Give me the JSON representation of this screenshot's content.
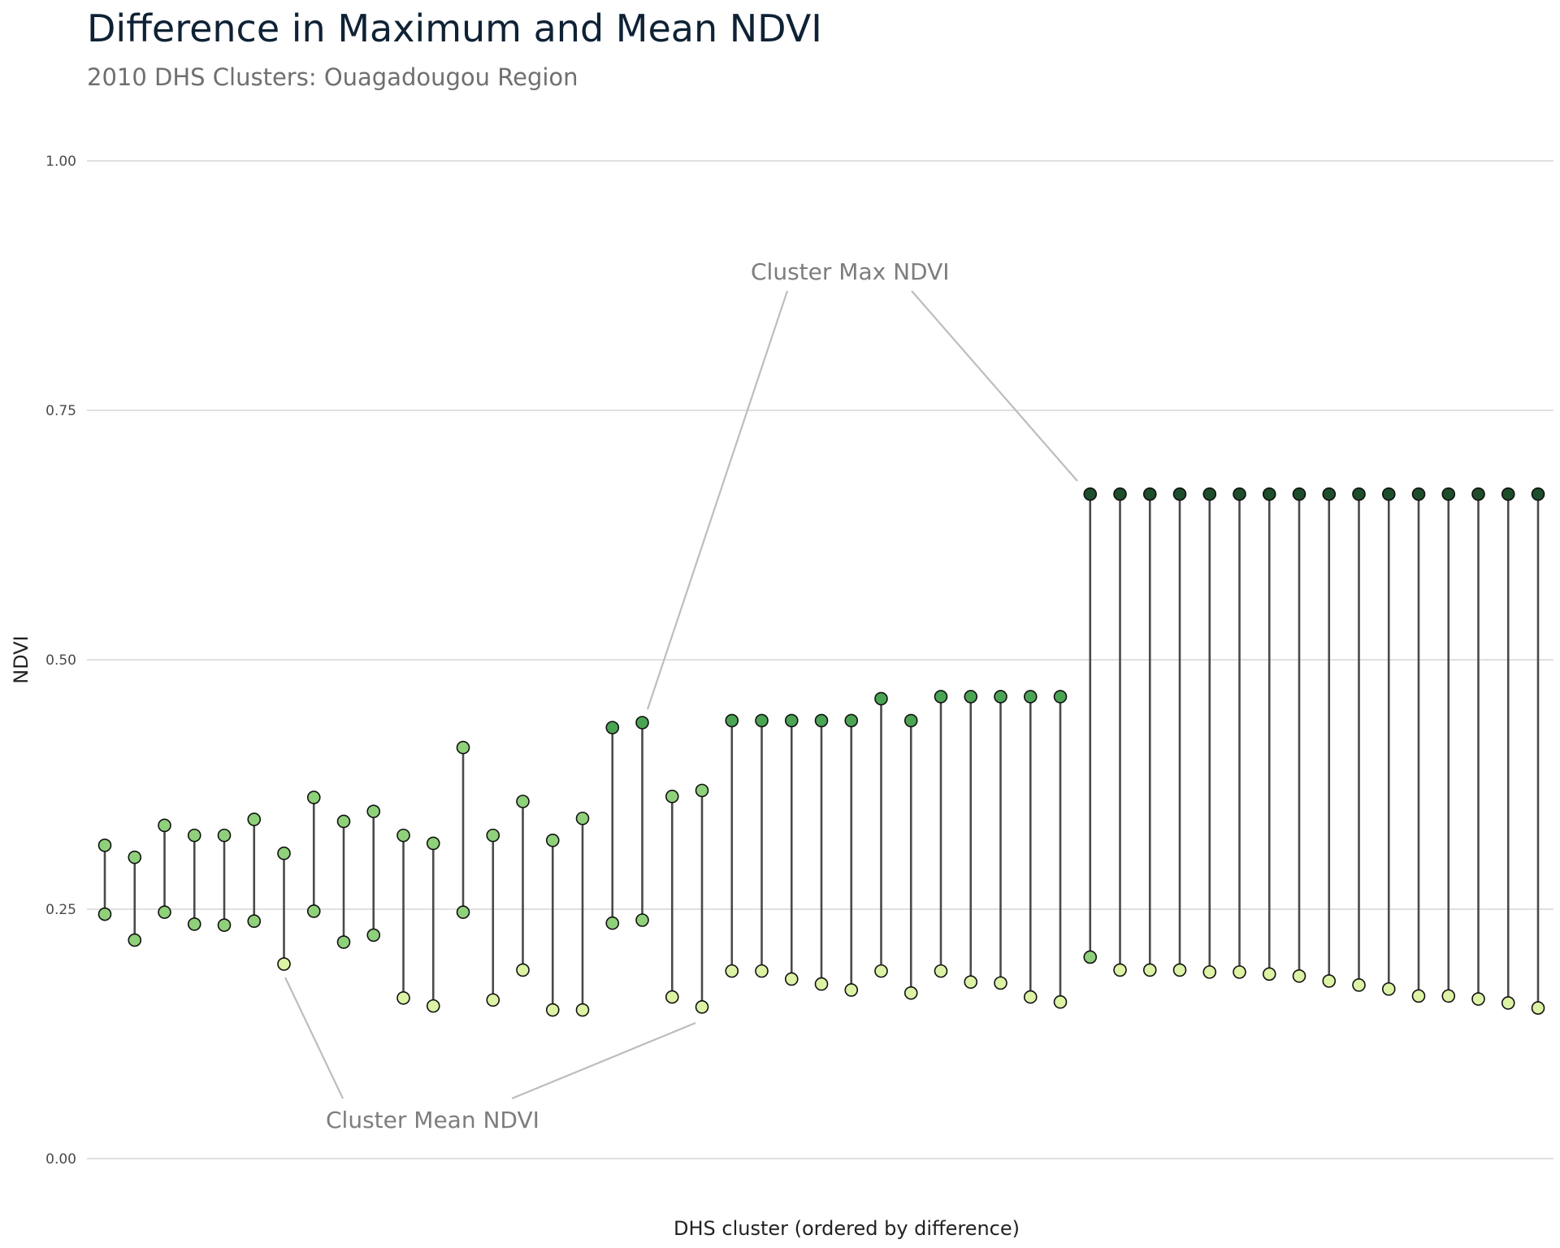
{
  "title": "Difference in Maximum and Mean NDVI",
  "subtitle": "2010 DHS Clusters: Ouagadougou Region",
  "chart_data": {
    "type": "dumbbell",
    "title": "Difference in Maximum and Mean NDVI",
    "subtitle": "2010 DHS Clusters: Ouagadougou Region",
    "xlabel": "DHS cluster (ordered by difference)",
    "ylabel": "NDVI",
    "ylim": [
      0,
      1
    ],
    "yticks": [
      "0.00",
      "0.25",
      "0.50",
      "0.75",
      "1.00"
    ],
    "grid": "horizontal",
    "series": [
      {
        "name": "Cluster Max NDVI",
        "values": [
          0.314,
          0.302,
          0.334,
          0.324,
          0.324,
          0.34,
          0.306,
          0.362,
          0.338,
          0.348,
          0.324,
          0.316,
          0.412,
          0.324,
          0.358,
          0.319,
          0.341,
          0.432,
          0.437,
          0.363,
          0.369,
          0.439,
          0.439,
          0.439,
          0.439,
          0.439,
          0.461,
          0.439,
          0.463,
          0.463,
          0.463,
          0.463,
          0.463,
          0.666,
          0.666,
          0.666,
          0.666,
          0.666,
          0.666,
          0.666,
          0.666,
          0.666,
          0.666,
          0.666,
          0.666,
          0.666,
          0.666,
          0.666,
          0.666
        ]
      },
      {
        "name": "Cluster Mean NDVI",
        "values": [
          0.245,
          0.219,
          0.247,
          0.235,
          0.234,
          0.238,
          0.195,
          0.248,
          0.217,
          0.224,
          0.161,
          0.153,
          0.247,
          0.159,
          0.189,
          0.149,
          0.149,
          0.236,
          0.239,
          0.162,
          0.152,
          0.188,
          0.188,
          0.18,
          0.175,
          0.169,
          0.188,
          0.166,
          0.188,
          0.177,
          0.176,
          0.162,
          0.157,
          0.202,
          0.189,
          0.189,
          0.189,
          0.187,
          0.187,
          0.185,
          0.183,
          0.178,
          0.174,
          0.17,
          0.163,
          0.163,
          0.16,
          0.156,
          0.151
        ]
      }
    ],
    "annotations": [
      "Cluster Max NDVI",
      "Cluster Mean NDVI"
    ],
    "colors": {
      "max_low": "#8fd07a",
      "max_mid": "#4aa453",
      "max_high": "#1e4d2b",
      "mean_mid": "#8fd07a",
      "mean_low": "#dcf2a4",
      "segment": "#4a4a4a",
      "grid": "#e0e0e0",
      "leader": "#bdbdbd"
    }
  }
}
